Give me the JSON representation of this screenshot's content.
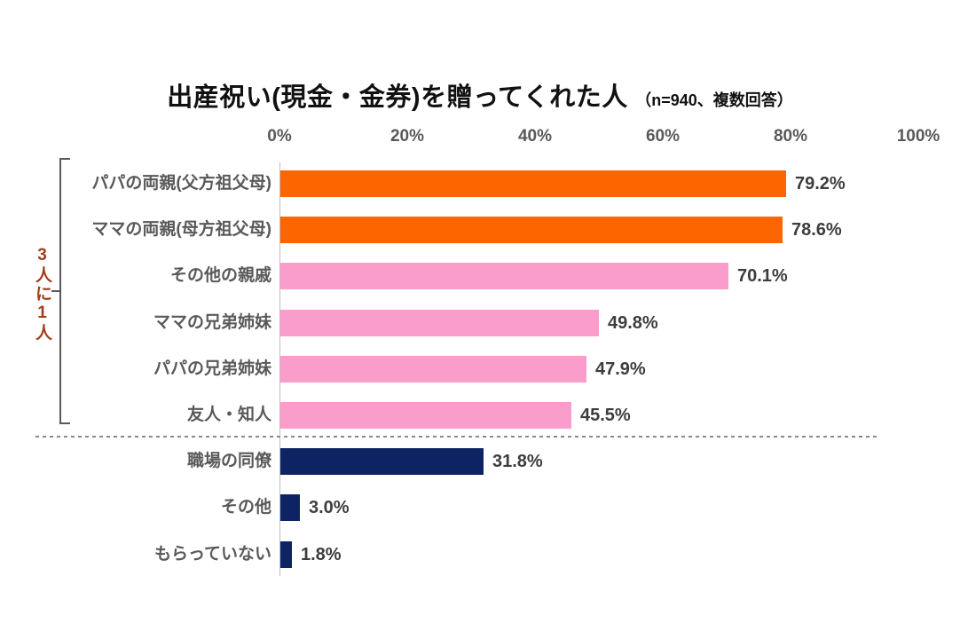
{
  "title": {
    "main": "出産祝い(現金・金券)を贈ってくれた人",
    "note": "（n=940、複数回答）"
  },
  "annotation": {
    "text": "3人に1人"
  },
  "axis": {
    "ticks": [
      "0%",
      "20%",
      "40%",
      "60%",
      "80%",
      "100%"
    ]
  },
  "colors": {
    "orange": "#FD6500",
    "pink": "#FB9DCB",
    "navy": "#0E2364",
    "annotation_text": "#A43C1A",
    "category_text": "#595959",
    "value_text": "#3D3D3D",
    "axis_line": "#BDBDBD",
    "divider": "#8A8A8A"
  },
  "chart_data": {
    "type": "bar",
    "orientation": "horizontal",
    "title": "出産祝い(現金・金券)を贈ってくれた人（n=940、複数回答）",
    "sample_note": "n=940、複数回答",
    "xlabel": "",
    "ylabel": "",
    "xlim": [
      0,
      100
    ],
    "x_tick_values": [
      0,
      20,
      40,
      60,
      80,
      100
    ],
    "grid": false,
    "legend": "none",
    "categories": [
      "パパの両親(父方祖父母)",
      "ママの両親(母方祖父母)",
      "その他の親戚",
      "ママの兄弟姉妹",
      "パパの兄弟姉妹",
      "友人・知人",
      "職場の同僚",
      "その他",
      "もらっていない"
    ],
    "values": [
      79.2,
      78.6,
      70.1,
      49.8,
      47.9,
      45.5,
      31.8,
      3.0,
      1.8
    ],
    "value_labels": [
      "79.2%",
      "78.6%",
      "70.1%",
      "49.8%",
      "47.9%",
      "45.5%",
      "31.8%",
      "3.0%",
      "1.8%"
    ],
    "bar_color_keys": [
      "orange",
      "orange",
      "pink",
      "pink",
      "pink",
      "pink",
      "navy",
      "navy",
      "navy"
    ],
    "divider_after_index": 5,
    "group_annotation": {
      "label": "3人に1人",
      "applies_to_rows": [
        0,
        5
      ]
    }
  }
}
